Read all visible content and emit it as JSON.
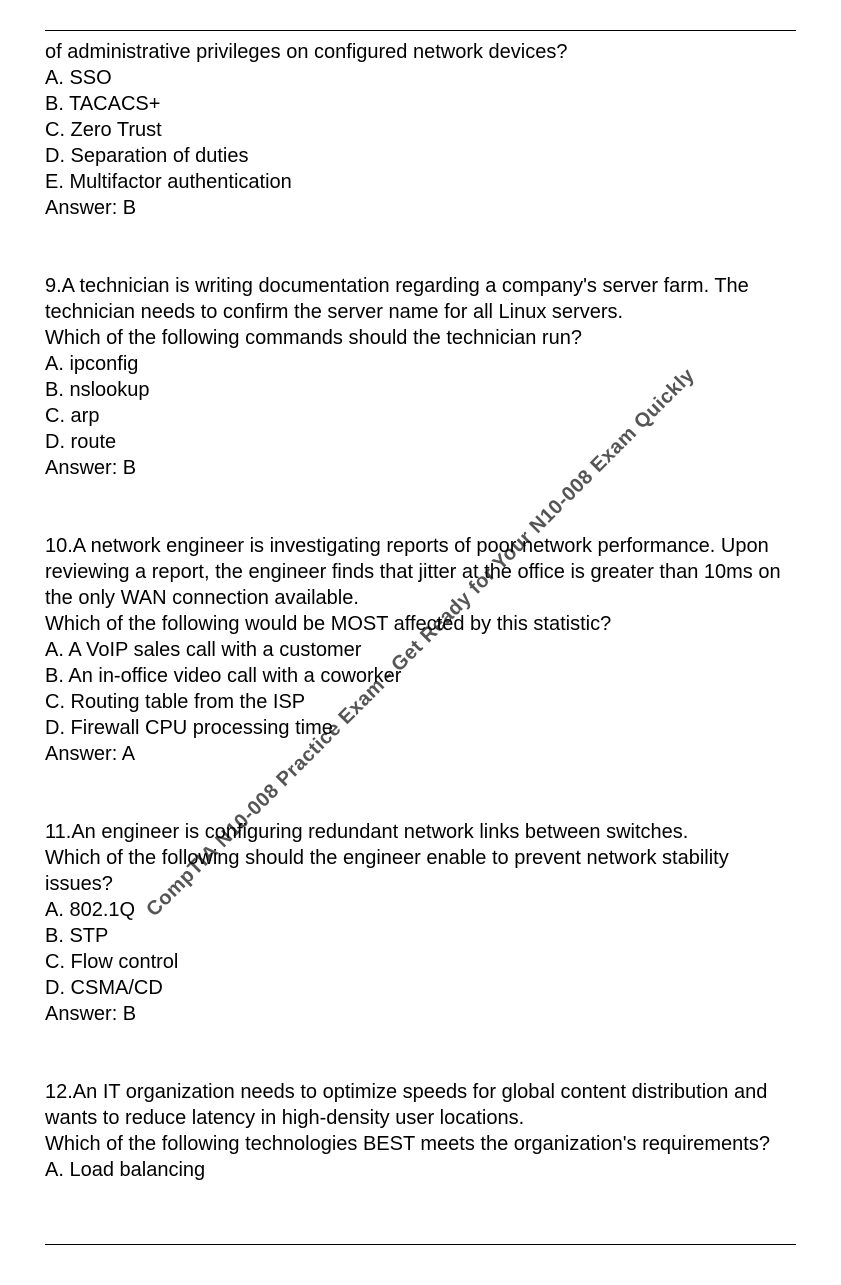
{
  "watermark": "CompTIA N10-008 Practice Exam - Get Ready for Your N10-008 Exam Quickly",
  "q8": {
    "fragment": "of administrative privileges on configured network devices?",
    "optA": "A. SSO",
    "optB": "B. TACACS+",
    "optC": "C. Zero Trust",
    "optD": "D. Separation of duties",
    "optE": "E. Multifactor authentication",
    "answer": "Answer: B"
  },
  "q9": {
    "line1": "9.A technician is writing documentation regarding a company's server farm. The",
    "line2": "technician needs to confirm the server name for all Linux servers.",
    "line3": "Which of the following commands should the technician run?",
    "optA": "A. ipconfig",
    "optB": "B. nslookup",
    "optC": "C. arp",
    "optD": "D. route",
    "answer": "Answer: B"
  },
  "q10": {
    "line1": "10.A network engineer is investigating reports of poor network performance. Upon",
    "line2": "reviewing a report, the engineer finds that jitter at the office is greater than 10ms on",
    "line3": "the only WAN connection available.",
    "line4": "Which of the following would be MOST affected by this statistic?",
    "optA": "A. A VoIP sales call with a customer",
    "optB": "B. An in-office video call with a coworker",
    "optC": "C. Routing table from the ISP",
    "optD": "D. Firewall CPU processing time",
    "answer": "Answer: A"
  },
  "q11": {
    "line1": "11.An engineer is configuring redundant network links between switches.",
    "line2": "Which of the following should the engineer enable to prevent network stability issues?",
    "optA": "A. 802.1Q",
    "optB": "B. STP",
    "optC": "C. Flow control",
    "optD": "D. CSMA/CD",
    "answer": "Answer: B"
  },
  "q12": {
    "line1": "12.An IT organization needs to optimize speeds for global content distribution and",
    "line2": "wants to reduce latency in high-density user locations.",
    "line3": "Which of the following technologies BEST meets the organization's requirements?",
    "optA": "A. Load balancing"
  }
}
